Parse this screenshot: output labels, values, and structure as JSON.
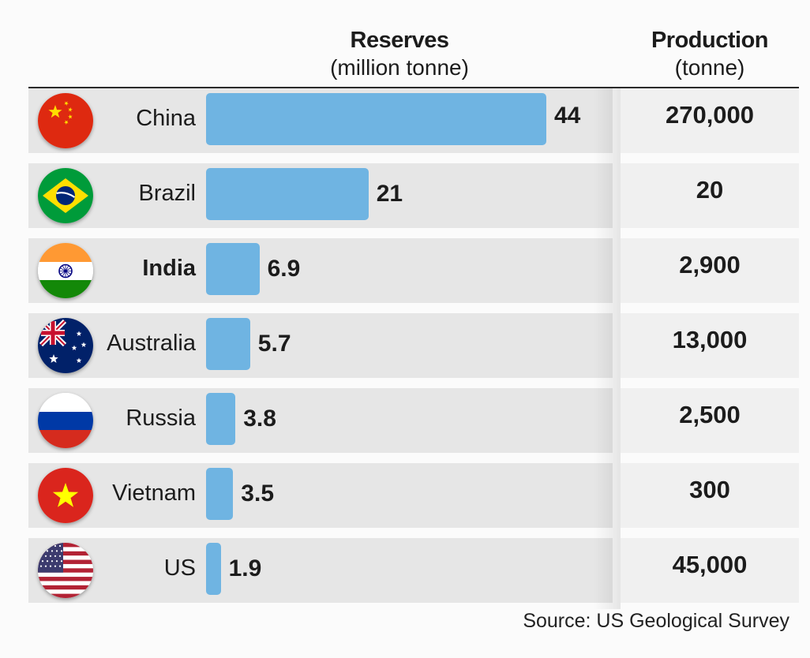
{
  "header": {
    "reserves_title": "Reserves",
    "reserves_unit": "(million tonne)",
    "production_title": "Production",
    "production_unit": "(tonne)"
  },
  "chart_data": {
    "type": "bar",
    "categories": [
      "China",
      "Brazil",
      "India",
      "Australia",
      "Russia",
      "Vietnam",
      "US"
    ],
    "series": [
      {
        "name": "Reserves",
        "values": [
          44,
          21,
          6.9,
          5.7,
          3.8,
          3.5,
          1.9
        ]
      }
    ],
    "value_labels": [
      "44",
      "21",
      "6.9",
      "5.7",
      "3.8",
      "3.5",
      "1.9"
    ],
    "production_labels": [
      "270,000",
      "20",
      "2,900",
      "13,000",
      "2,500",
      "300",
      "45,000"
    ],
    "production_values": [
      270000,
      20,
      2900,
      13000,
      2500,
      300,
      45000
    ],
    "highlight": "India",
    "bar_color": "#6fb4e2",
    "xlim": [
      0,
      44
    ]
  },
  "rows": [
    {
      "country": "China",
      "flag": "china-flag-icon"
    },
    {
      "country": "Brazil",
      "flag": "brazil-flag-icon"
    },
    {
      "country": "India",
      "flag": "india-flag-icon"
    },
    {
      "country": "Australia",
      "flag": "australia-flag-icon"
    },
    {
      "country": "Russia",
      "flag": "russia-flag-icon"
    },
    {
      "country": "Vietnam",
      "flag": "vietnam-flag-icon"
    },
    {
      "country": "US",
      "flag": "us-flag-icon"
    }
  ],
  "source": "Source: US Geological Survey"
}
